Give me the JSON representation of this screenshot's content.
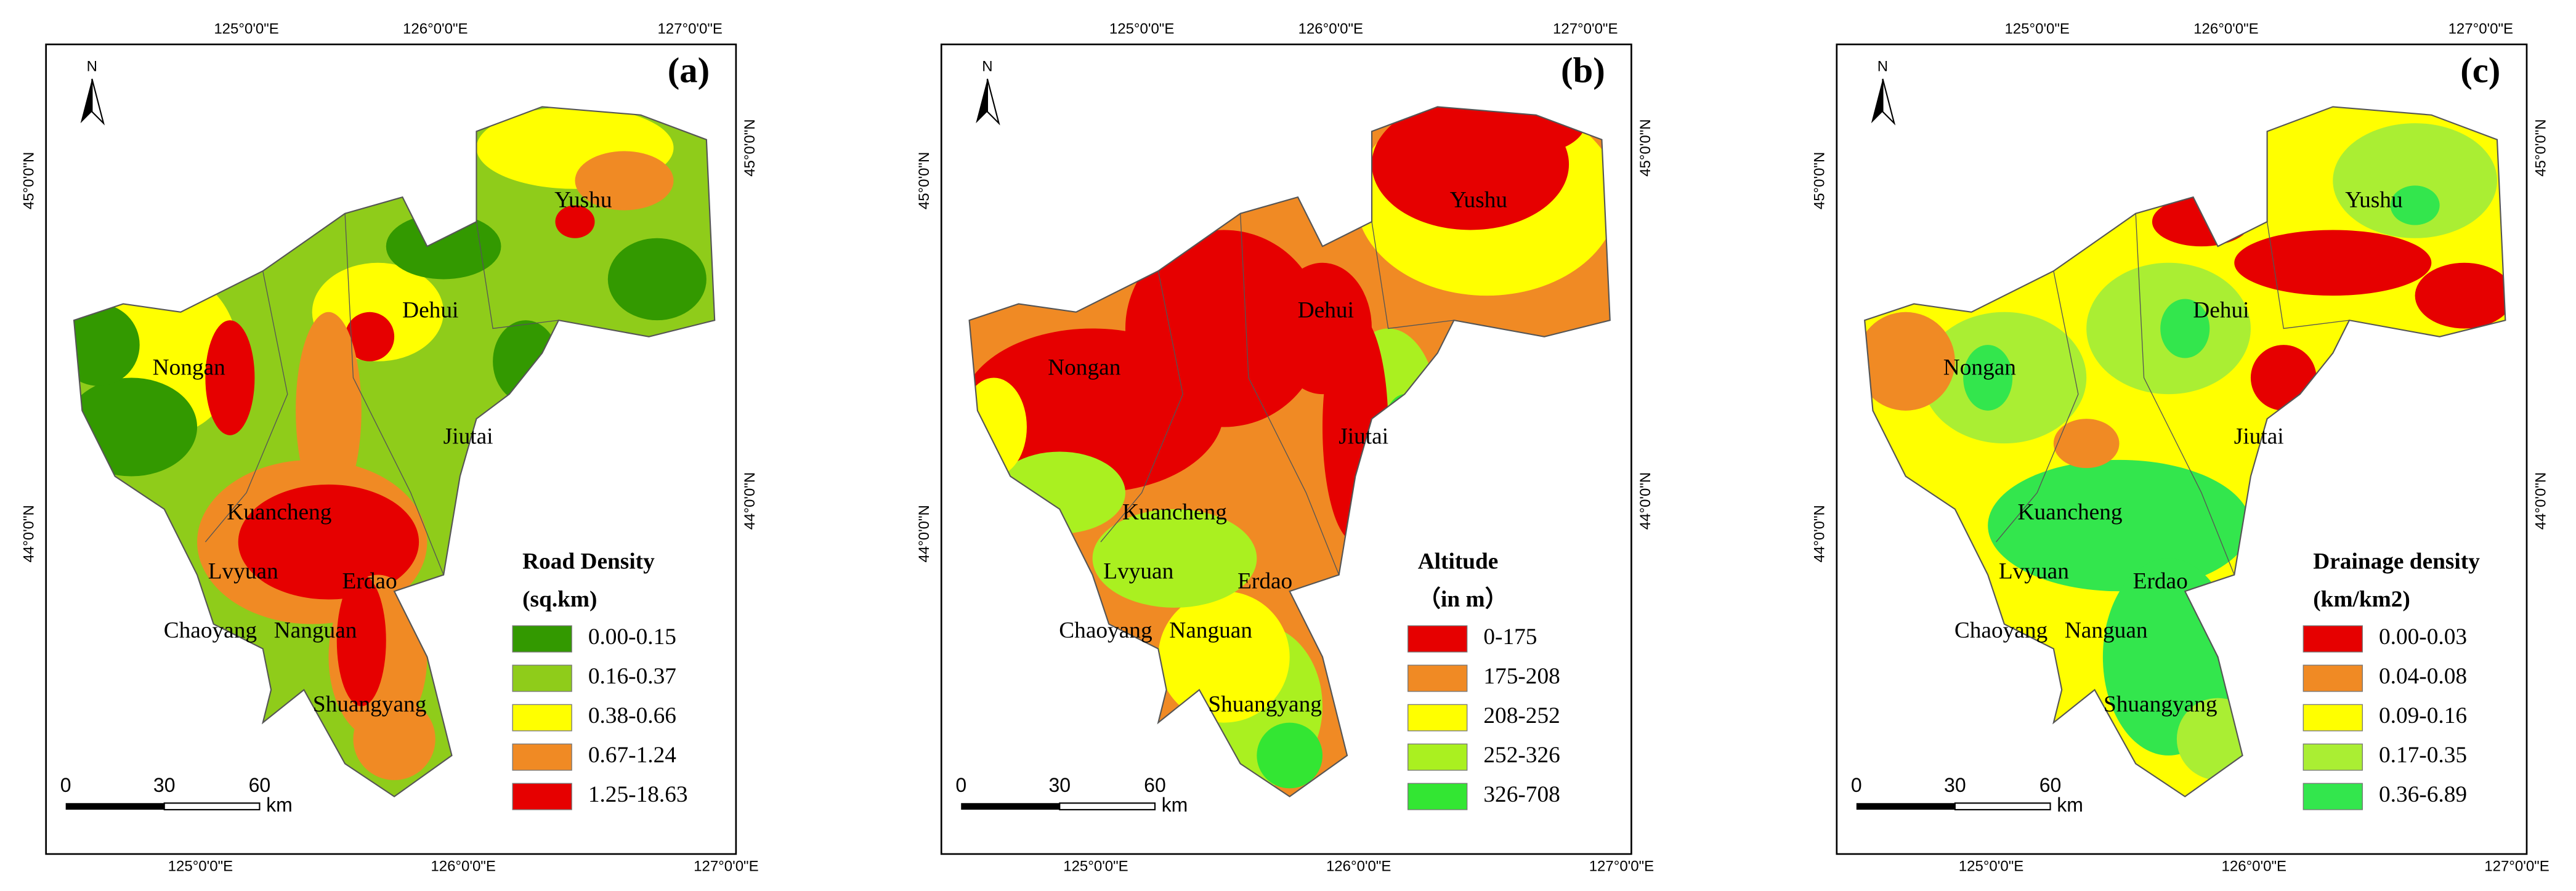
{
  "north": "N",
  "coordinates": {
    "top": [
      "125°0'0\"E",
      "126°0'0\"E",
      "127°0'0\"E"
    ],
    "left": [
      "45°0'0\"N",
      "44°0'0\"N"
    ]
  },
  "scale_bar": {
    "ticks": [
      "0",
      "30",
      "60"
    ],
    "unit": "km"
  },
  "places": [
    "Yushu",
    "Dehui",
    "Nongan",
    "Jiutai",
    "Kuancheng",
    "Lvyuan",
    "Erdao",
    "Chaoyang",
    "Nanguan",
    "Shuangyang"
  ],
  "panels": [
    {
      "label": "(a)",
      "legend": {
        "title": "Road Density",
        "subtitle": "(sq.km)",
        "classes": [
          {
            "label": "0.00-0.15",
            "color": "#339900"
          },
          {
            "label": "0.16-0.37",
            "color": "#8fcc1a"
          },
          {
            "label": "0.38-0.66",
            "color": "#ffff00"
          },
          {
            "label": "0.67-1.24",
            "color": "#f08a24"
          },
          {
            "label": "1.25-18.63",
            "color": "#e60000"
          }
        ]
      }
    },
    {
      "label": "(b)",
      "legend": {
        "title": "Altitude",
        "subtitle": "（in m）",
        "classes": [
          {
            "label": "0-175",
            "color": "#e60000"
          },
          {
            "label": "175-208",
            "color": "#f08a24"
          },
          {
            "label": "208-252",
            "color": "#ffff00"
          },
          {
            "label": "252-326",
            "color": "#aaf020"
          },
          {
            "label": "326-708",
            "color": "#33e633"
          }
        ]
      }
    },
    {
      "label": "(c)",
      "legend": {
        "title": "Drainage density",
        "subtitle": "(km/km2)",
        "classes": [
          {
            "label": "0.00-0.03",
            "color": "#e60000"
          },
          {
            "label": "0.04-0.08",
            "color": "#f08a24"
          },
          {
            "label": "0.09-0.16",
            "color": "#ffff00"
          },
          {
            "label": "0.17-0.35",
            "color": "#aaee33"
          },
          {
            "label": "0.36-6.89",
            "color": "#33e64d"
          }
        ]
      }
    }
  ]
}
